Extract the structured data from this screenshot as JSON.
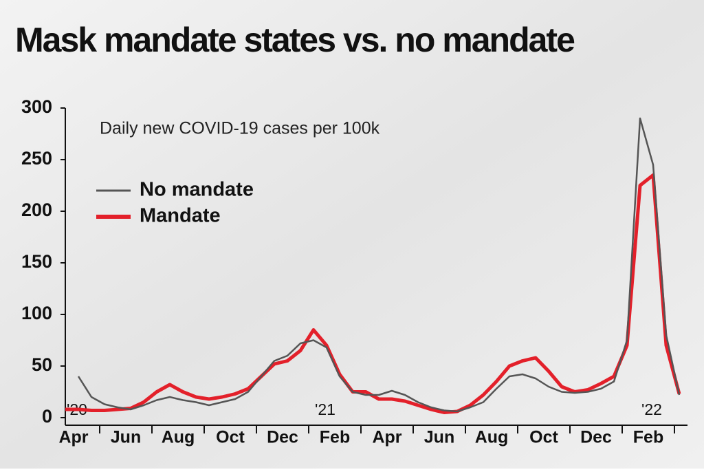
{
  "chart_data": {
    "type": "line",
    "title": "Mask mandate states vs. no mandate",
    "subtitle": "Daily new COVID-19 cases per 100k",
    "categories": [
      "Apr",
      null,
      null,
      null,
      "Jun",
      null,
      null,
      null,
      "Aug",
      null,
      null,
      null,
      "Oct",
      null,
      null,
      null,
      "Dec",
      null,
      null,
      null,
      "Feb",
      null,
      null,
      null,
      "Apr",
      null,
      null,
      null,
      "Jun",
      null,
      null,
      null,
      "Aug",
      null,
      null,
      null,
      "Oct",
      null,
      null,
      null,
      "Dec",
      null,
      null,
      null,
      "Feb",
      null,
      null,
      null
    ],
    "year_ticks": [
      {
        "value": 0,
        "label": "'20"
      },
      {
        "value": 19,
        "label": "'21"
      },
      {
        "value": 44,
        "label": "'22"
      }
    ],
    "series": [
      {
        "name": "No mandate",
        "color": "#555555",
        "values": [
          null,
          40,
          20,
          13,
          10,
          8,
          12,
          17,
          20,
          17,
          15,
          12,
          15,
          18,
          25,
          40,
          55,
          60,
          72,
          75,
          68,
          40,
          25,
          22,
          22,
          26,
          22,
          15,
          10,
          7,
          6,
          10,
          15,
          28,
          40,
          42,
          38,
          30,
          25,
          24,
          25,
          28,
          35,
          75,
          290,
          245,
          80,
          22
        ]
      },
      {
        "name": "Mandate",
        "color": "#e3202a",
        "values": [
          8,
          8,
          7,
          7,
          8,
          9,
          15,
          25,
          32,
          25,
          20,
          18,
          20,
          23,
          28,
          40,
          52,
          55,
          65,
          85,
          70,
          42,
          25,
          25,
          18,
          18,
          16,
          12,
          8,
          5,
          6,
          12,
          22,
          35,
          50,
          55,
          58,
          45,
          30,
          25,
          27,
          33,
          40,
          70,
          225,
          235,
          70,
          23
        ]
      }
    ],
    "ylim": [
      0,
      300
    ],
    "yticks": [
      0,
      50,
      100,
      150,
      200,
      250,
      300
    ],
    "legend": "upper-left"
  }
}
